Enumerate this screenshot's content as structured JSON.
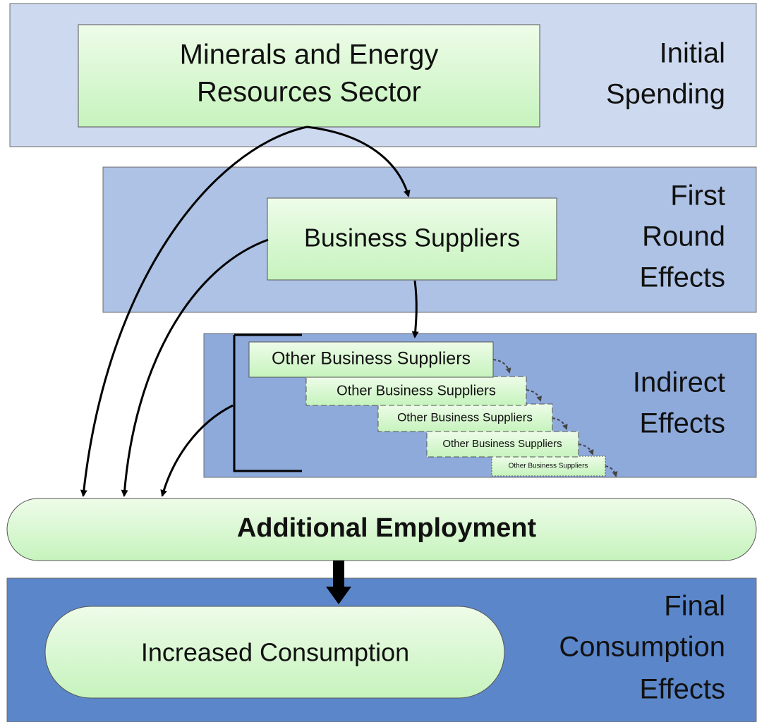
{
  "bands": [
    {
      "lines": [
        "Initial",
        "Spending"
      ]
    },
    {
      "lines": [
        "First",
        "Round",
        "Effects"
      ]
    },
    {
      "lines": [
        "Indirect",
        "Effects"
      ]
    },
    {
      "lines": [
        "Final",
        "Consumption",
        "Effects"
      ]
    }
  ],
  "nodes": [
    {
      "lines": [
        "Minerals and Energy",
        "Resources Sector"
      ]
    },
    {
      "lines": [
        "Business Suppliers"
      ]
    },
    {
      "lines": [
        "Other Business Suppliers"
      ]
    },
    {
      "lines": [
        "Other Business Suppliers"
      ]
    },
    {
      "lines": [
        "Other Business Suppliers"
      ]
    },
    {
      "lines": [
        "Other Business Suppliers"
      ]
    },
    {
      "lines": [
        "Other Business Suppliers"
      ]
    },
    {
      "lines": [
        "Additional Employment"
      ]
    },
    {
      "lines": [
        "Increased Consumption"
      ]
    }
  ]
}
